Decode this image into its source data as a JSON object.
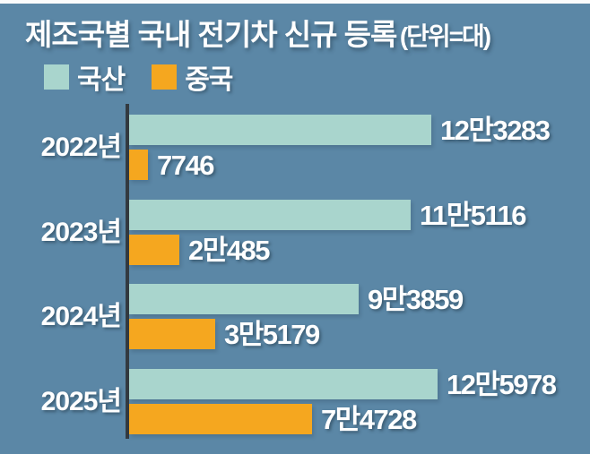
{
  "header": {
    "title": "제조국별 국내 전기차 신규 등록",
    "unit_note": "(단위=대)"
  },
  "colors": {
    "background": "#5b87a6",
    "axis": "#333a40",
    "domestic_bar": "#a9d5cd",
    "china_bar": "#f5a71f",
    "text": "#ffffff",
    "top_strip": "#fbfbfb"
  },
  "chart_data": {
    "type": "bar",
    "orientation": "horizontal",
    "title": "제조국별 국내 전기차 신규 등록",
    "unit_note": "(단위=대)",
    "categories": [
      "2022년",
      "2023년",
      "2024년",
      "2025년"
    ],
    "series": [
      {
        "key": "domestic",
        "name": "국산",
        "color": "#a9d5cd",
        "values": [
          123283,
          115116,
          93859,
          125978
        ],
        "value_labels": [
          "12만3283",
          "11만5116",
          "9만3859",
          "12만5978"
        ]
      },
      {
        "key": "china",
        "name": "중국",
        "color": "#f5a71f",
        "values": [
          7746,
          20485,
          35179,
          74728
        ],
        "value_labels": [
          "7746",
          "2만485",
          "3만5179",
          "7만4728"
        ]
      }
    ],
    "x_axis": {
      "min": 0,
      "implied_max": 130000,
      "gridlines": false,
      "tick_labels": []
    },
    "legend_position": "top-left",
    "value_label_position": "right-of-bar"
  }
}
